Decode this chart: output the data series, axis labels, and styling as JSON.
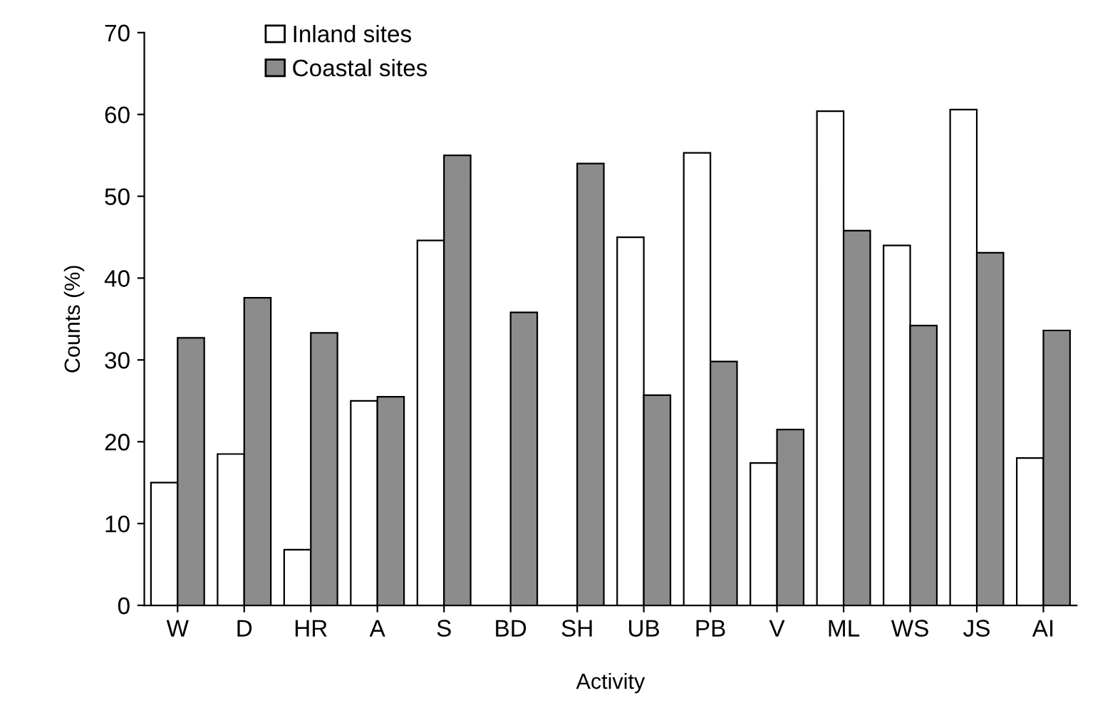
{
  "chart_data": {
    "type": "bar",
    "xlabel": "Activity",
    "ylabel": "Counts (%)",
    "categories": [
      "W",
      "D",
      "HR",
      "A",
      "S",
      "BD",
      "SH",
      "UB",
      "PB",
      "V",
      "ML",
      "WS",
      "JS",
      "AI"
    ],
    "series": [
      {
        "name": "Inland sites",
        "color": "#ffffff",
        "values": [
          15,
          18.5,
          6.8,
          25,
          44.6,
          null,
          null,
          45,
          55.3,
          17.4,
          60.4,
          44,
          60.6,
          18
        ]
      },
      {
        "name": "Coastal sites",
        "color": "#8c8c8c",
        "values": [
          32.7,
          37.6,
          33.3,
          25.5,
          55,
          35.8,
          54,
          25.7,
          29.8,
          21.5,
          45.8,
          34.2,
          43.1,
          33.6
        ]
      }
    ],
    "ylim": [
      0,
      70
    ],
    "yticks": [
      0,
      10,
      20,
      30,
      40,
      50,
      60,
      70
    ],
    "grid": false,
    "legend": "top left"
  }
}
